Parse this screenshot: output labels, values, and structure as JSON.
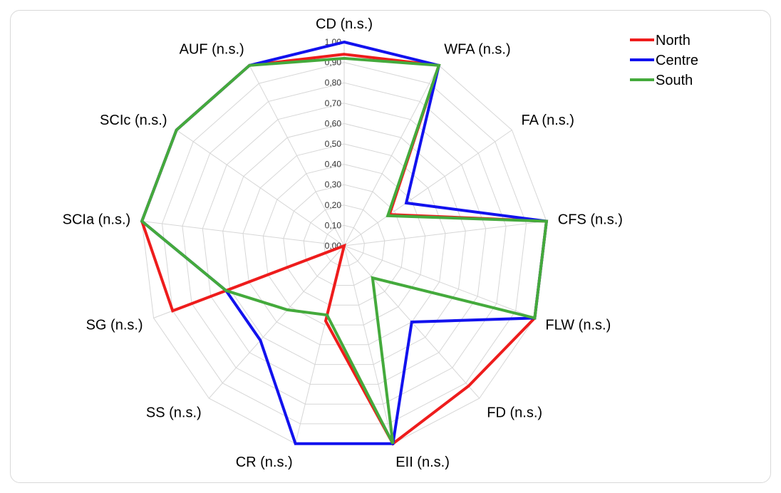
{
  "chart_data": {
    "type": "radar",
    "title": "",
    "categories": [
      "CD (n.s.)",
      "WFA (n.s.)",
      "FA (n.s.)",
      "CFS (n.s.)",
      "FLW (n.s.)",
      "FD (n.s.)",
      "EII (n.s.)",
      "CR (n.s.)",
      "SS (n.s.)",
      "SG (n.s.)",
      "SCIa (n.s.)",
      "SCIc (n.s.)",
      "AUF (n.s.)"
    ],
    "rlim": [
      0,
      1
    ],
    "ticks": [
      "0,00",
      "0,10",
      "0,20",
      "0,30",
      "0,40",
      "0,50",
      "0,60",
      "0,70",
      "0,80",
      "0,90",
      "1,00"
    ],
    "grid": true,
    "legend_position": "top-right",
    "series": [
      {
        "name": "North",
        "color": "#ee1c1c",
        "values": [
          0.94,
          1.0,
          0.27,
          1.0,
          1.0,
          0.92,
          1.0,
          0.38,
          0.0,
          0.9,
          1.0,
          1.0,
          1.0
        ]
      },
      {
        "name": "Centre",
        "color": "#1212ee",
        "values": [
          1.0,
          1.0,
          0.37,
          1.0,
          1.0,
          0.5,
          1.0,
          1.0,
          0.62,
          0.62,
          1.0,
          1.0,
          1.0
        ]
      },
      {
        "name": "South",
        "color": "#44aa3c",
        "values": [
          0.92,
          1.0,
          0.26,
          1.0,
          1.0,
          0.21,
          1.0,
          0.35,
          0.42,
          0.62,
          1.0,
          1.0,
          1.0
        ]
      }
    ]
  }
}
